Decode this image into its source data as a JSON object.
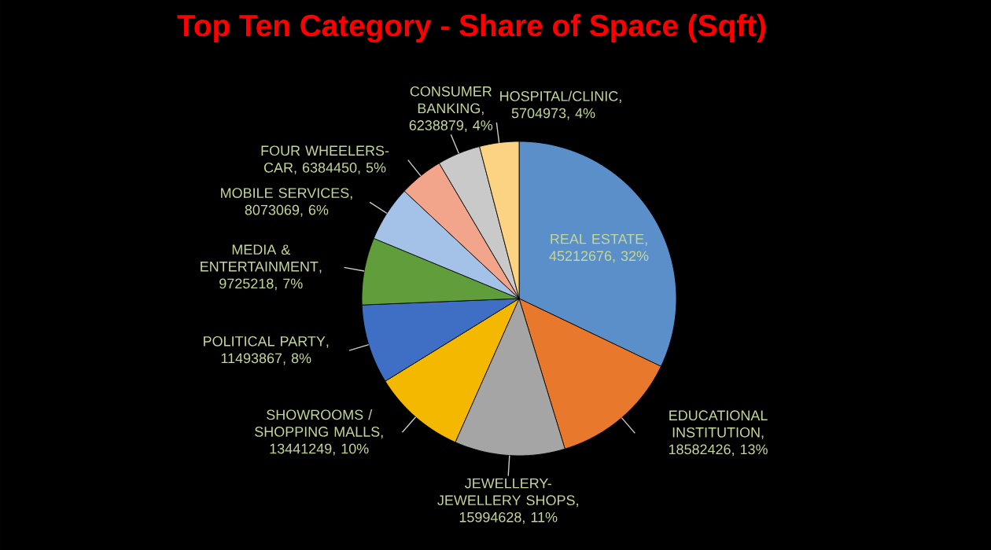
{
  "chart_data": {
    "type": "pie",
    "title": "Top Ten Category - Share of Space (Sqft)",
    "categories": [
      "REAL ESTATE",
      "EDUCATIONAL INSTITUTION",
      "JEWELLERY- JEWELLERY  SHOPS",
      "SHOWROOMS / SHOPPING MALLS",
      "POLITICAL PARTY",
      "MEDIA & ENTERTAINMENT",
      "MOBILE SERVICES",
      "FOUR WHEELERS-CAR",
      "CONSUMER BANKING",
      "HOSPITAL/CLINIC"
    ],
    "values": [
      45212676,
      18582426,
      15994628,
      13441249,
      11493867,
      9725218,
      8073069,
      6384450,
      6238879,
      5704973
    ],
    "value_labels": [
      ", 45212676, 32%",
      ", 18582426, 13%",
      ", 15994628, 11%",
      ", 13441249, 10%",
      ", 11493867, 8%",
      ", 9725218, 7%",
      ", 8073069, 6%",
      ", 6384450, 5%",
      ", 6238879, 4%",
      ", 5704973, 4%"
    ],
    "colors": [
      "#5b8fc9",
      "#e8782c",
      "#a5a5a5",
      "#f5b800",
      "#3f6fc4",
      "#5f9e3a",
      "#a4c2e8",
      "#f2a58a",
      "#c9c9c9",
      "#fcd283"
    ]
  }
}
